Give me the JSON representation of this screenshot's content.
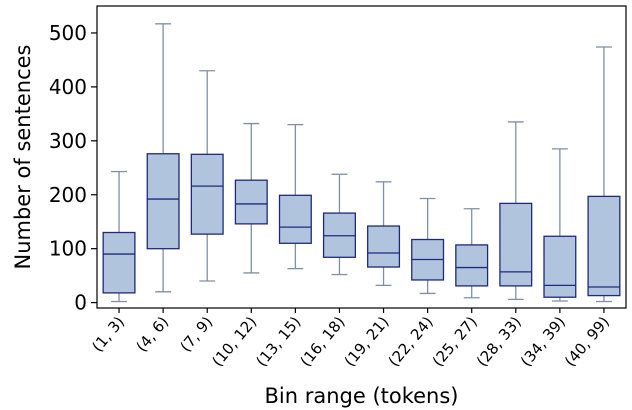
{
  "chart_data": {
    "type": "boxplot",
    "title": "",
    "xlabel": "Bin range (tokens)",
    "ylabel": "Number of sentences",
    "ylim": [
      -10,
      550
    ],
    "yticks": [
      0,
      100,
      200,
      300,
      400,
      500
    ],
    "grid": false,
    "legend": "none",
    "categories": [
      "(1, 3)",
      "(4, 6)",
      "(7, 9)",
      "(10, 12)",
      "(13, 15)",
      "(16, 18)",
      "(19, 21)",
      "(22, 24)",
      "(25, 27)",
      "(28, 33)",
      "(34, 39)",
      "(40, 99)"
    ],
    "boxes": [
      {
        "whisker_low": 2,
        "q1": 18,
        "median": 90,
        "q3": 130,
        "whisker_high": 243
      },
      {
        "whisker_low": 20,
        "q1": 100,
        "median": 192,
        "q3": 276,
        "whisker_high": 517
      },
      {
        "whisker_low": 40,
        "q1": 127,
        "median": 216,
        "q3": 275,
        "whisker_high": 430
      },
      {
        "whisker_low": 55,
        "q1": 146,
        "median": 183,
        "q3": 227,
        "whisker_high": 332
      },
      {
        "whisker_low": 63,
        "q1": 110,
        "median": 140,
        "q3": 199,
        "whisker_high": 330
      },
      {
        "whisker_low": 52,
        "q1": 84,
        "median": 124,
        "q3": 166,
        "whisker_high": 238
      },
      {
        "whisker_low": 32,
        "q1": 66,
        "median": 92,
        "q3": 142,
        "whisker_high": 224
      },
      {
        "whisker_low": 17,
        "q1": 42,
        "median": 80,
        "q3": 117,
        "whisker_high": 193
      },
      {
        "whisker_low": 9,
        "q1": 31,
        "median": 65,
        "q3": 107,
        "whisker_high": 174
      },
      {
        "whisker_low": 6,
        "q1": 31,
        "median": 57,
        "q3": 184,
        "whisker_high": 335
      },
      {
        "whisker_low": 3,
        "q1": 10,
        "median": 32,
        "q3": 123,
        "whisker_high": 285
      },
      {
        "whisker_low": 2,
        "q1": 13,
        "median": 29,
        "q3": 197,
        "whisker_high": 474
      }
    ],
    "colors": {
      "box_fill": "#b0c4de",
      "box_edge": "#1f2a7a",
      "median": "#1f2a7a",
      "whisker": "#7f8fa6",
      "axis": "#000000"
    }
  }
}
